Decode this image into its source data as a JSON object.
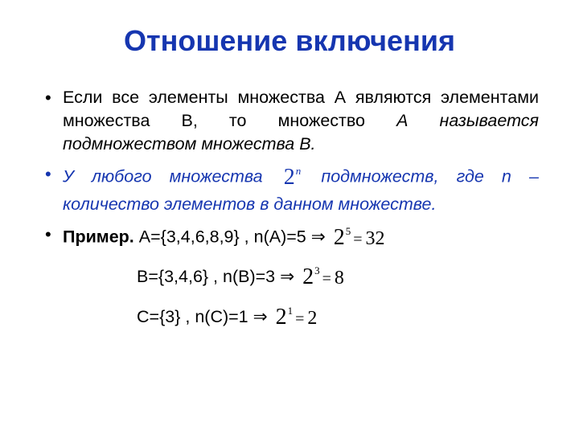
{
  "colors": {
    "title": "#1636b0",
    "bullet2": "#1636b0",
    "text": "#000000",
    "formula": "#000000"
  },
  "title": "Отношение включения",
  "bullets": {
    "b1": {
      "part1": "Если все элементы множества А являются элементами множества В, то множество ",
      "part2_italic": "А называется подмножеством множества В."
    },
    "b2": {
      "part1_italic": "У любого множества ",
      "formula_base": "2",
      "formula_sup": "n",
      "part2_italic": "подмножеств, где n – количество элементов в данном множестве."
    },
    "b3": {
      "bold": "Пример.",
      "lineA_text": " А={3,4,6,8,9} , n(A)=5 ⇒ ",
      "lineA_base": "2",
      "lineA_sup": "5",
      "lineA_eq": "=",
      "lineA_res": "32",
      "lineB_text": "B={3,4,6} , n(B)=3 ⇒ ",
      "lineB_base": "2",
      "lineB_sup": "3",
      "lineB_eq": "=",
      "lineB_res": "8",
      "lineC_text": "C={3} , n(C)=1 ⇒ ",
      "lineC_base": "2",
      "lineC_sup": "1",
      "lineC_eq": "=",
      "lineC_res": "2"
    }
  }
}
